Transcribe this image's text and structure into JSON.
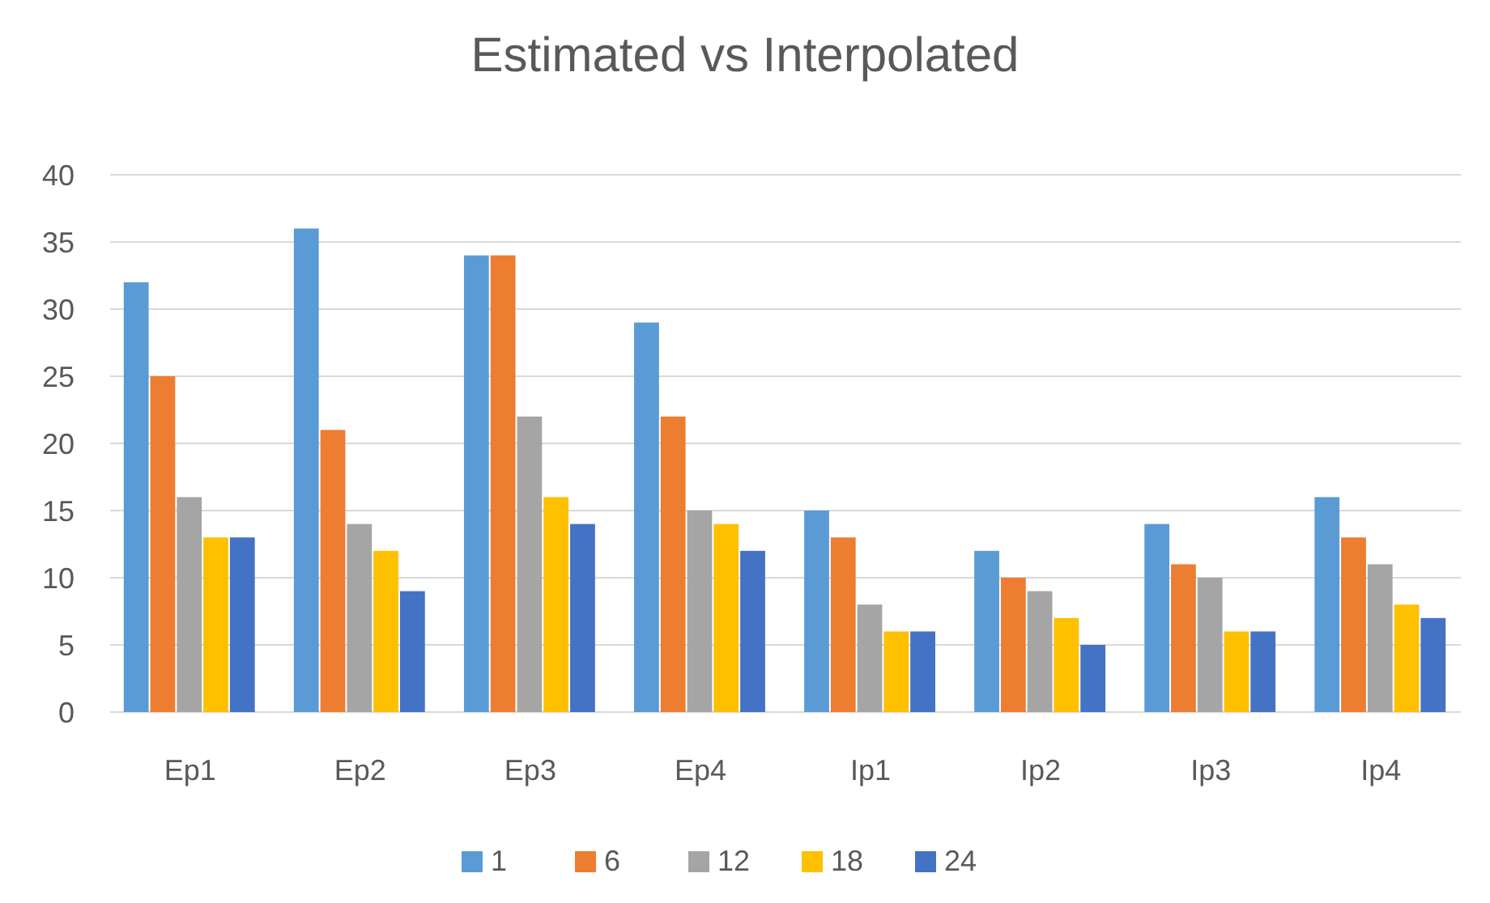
{
  "chart_data": {
    "type": "bar",
    "title": "Estimated vs Interpolated",
    "categories": [
      "Ep1",
      "Ep2",
      "Ep3",
      "Ep4",
      "Ip1",
      "Ip2",
      "Ip3",
      "Ip4"
    ],
    "series": [
      {
        "name": "1",
        "color": "#5b9bd5",
        "values": [
          32,
          36,
          34,
          29,
          15,
          12,
          14,
          16
        ]
      },
      {
        "name": "6",
        "color": "#ed7d31",
        "values": [
          25,
          21,
          34,
          22,
          13,
          10,
          11,
          13
        ]
      },
      {
        "name": "12",
        "color": "#a5a5a5",
        "values": [
          16,
          14,
          22,
          15,
          8,
          9,
          10,
          11
        ]
      },
      {
        "name": "18",
        "color": "#ffc000",
        "values": [
          13,
          12,
          16,
          14,
          6,
          7,
          6,
          8
        ]
      },
      {
        "name": "24",
        "color": "#4472c4",
        "values": [
          13,
          9,
          14,
          12,
          6,
          5,
          6,
          7
        ]
      }
    ],
    "ylim": [
      0,
      40
    ],
    "yticks": [
      0,
      5,
      10,
      15,
      20,
      25,
      30,
      35,
      40
    ],
    "grid": "y",
    "legend": "bottom"
  }
}
